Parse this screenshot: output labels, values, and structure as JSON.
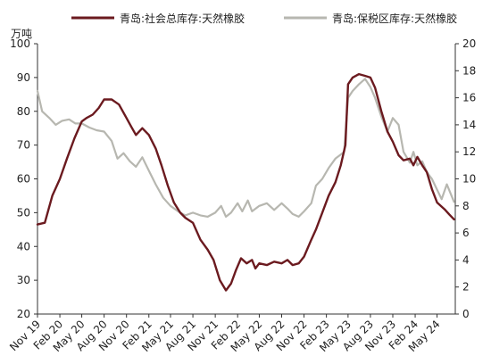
{
  "chart_data": {
    "type": "line",
    "title": "",
    "y_unit_label": "万吨",
    "y_left": {
      "min": 20,
      "max": 100,
      "ticks": [
        20,
        30,
        40,
        50,
        60,
        70,
        80,
        90,
        100
      ]
    },
    "y_right": {
      "min": 0,
      "max": 20,
      "ticks": [
        0,
        2,
        4,
        6,
        8,
        10,
        12,
        14,
        16,
        18,
        20
      ]
    },
    "x_range": [
      "2019-11-01",
      "2024-07-15"
    ],
    "x_ticks": [
      {
        "date": "2019-11-01",
        "label": "Nov 19"
      },
      {
        "date": "2020-02-01",
        "label": "Feb 20"
      },
      {
        "date": "2020-05-01",
        "label": "May 20"
      },
      {
        "date": "2020-08-01",
        "label": "Aug 20"
      },
      {
        "date": "2020-11-01",
        "label": "Nov 20"
      },
      {
        "date": "2021-02-01",
        "label": "Feb 21"
      },
      {
        "date": "2021-05-01",
        "label": "May 21"
      },
      {
        "date": "2021-08-01",
        "label": "Aug 21"
      },
      {
        "date": "2021-11-01",
        "label": "Nov 21"
      },
      {
        "date": "2022-02-01",
        "label": "Feb 22"
      },
      {
        "date": "2022-05-01",
        "label": "May 22"
      },
      {
        "date": "2022-08-01",
        "label": "Aug 22"
      },
      {
        "date": "2022-11-01",
        "label": "Nov 22"
      },
      {
        "date": "2023-02-01",
        "label": "Feb 23"
      },
      {
        "date": "2023-05-01",
        "label": "May 23"
      },
      {
        "date": "2023-08-01",
        "label": "Aug 23"
      },
      {
        "date": "2023-11-01",
        "label": "Nov 23"
      },
      {
        "date": "2024-02-01",
        "label": "Feb 24"
      },
      {
        "date": "2024-05-01",
        "label": "May 24"
      }
    ],
    "legend_position": "top",
    "grid": false,
    "series": [
      {
        "name": "青岛:社会总库存:天然橡胶",
        "axis": "left",
        "color": "#6b1a1f",
        "points": [
          [
            "2019-11-01",
            46.5
          ],
          [
            "2019-12-01",
            47
          ],
          [
            "2020-01-01",
            55
          ],
          [
            "2020-02-01",
            60
          ],
          [
            "2020-03-01",
            66
          ],
          [
            "2020-04-01",
            72
          ],
          [
            "2020-05-01",
            77
          ],
          [
            "2020-05-20",
            78
          ],
          [
            "2020-06-15",
            79
          ],
          [
            "2020-07-10",
            81
          ],
          [
            "2020-08-01",
            83.5
          ],
          [
            "2020-09-01",
            83.5
          ],
          [
            "2020-10-01",
            82
          ],
          [
            "2020-11-01",
            78
          ],
          [
            "2020-11-20",
            75.5
          ],
          [
            "2020-12-10",
            73
          ],
          [
            "2021-01-05",
            75
          ],
          [
            "2021-02-01",
            73
          ],
          [
            "2021-03-01",
            69
          ],
          [
            "2021-03-25",
            64
          ],
          [
            "2021-04-20",
            58
          ],
          [
            "2021-05-15",
            53
          ],
          [
            "2021-06-10",
            50
          ],
          [
            "2021-07-01",
            48.5
          ],
          [
            "2021-08-01",
            47
          ],
          [
            "2021-09-01",
            42
          ],
          [
            "2021-10-01",
            39
          ],
          [
            "2021-10-25",
            36
          ],
          [
            "2021-11-20",
            30
          ],
          [
            "2021-12-15",
            27
          ],
          [
            "2022-01-05",
            29
          ],
          [
            "2022-01-25",
            33
          ],
          [
            "2022-02-15",
            36.5
          ],
          [
            "2022-03-10",
            35
          ],
          [
            "2022-04-01",
            36
          ],
          [
            "2022-04-15",
            33.5
          ],
          [
            "2022-05-01",
            35
          ],
          [
            "2022-06-01",
            34.5
          ],
          [
            "2022-07-01",
            35.5
          ],
          [
            "2022-08-01",
            35
          ],
          [
            "2022-08-25",
            36
          ],
          [
            "2022-09-15",
            34.5
          ],
          [
            "2022-10-10",
            35
          ],
          [
            "2022-11-01",
            37
          ],
          [
            "2022-12-01",
            42
          ],
          [
            "2022-12-20",
            45
          ],
          [
            "2023-01-15",
            50
          ],
          [
            "2023-02-10",
            55
          ],
          [
            "2023-03-10",
            59
          ],
          [
            "2023-04-01",
            64
          ],
          [
            "2023-04-20",
            70
          ],
          [
            "2023-05-01",
            88
          ],
          [
            "2023-05-20",
            90
          ],
          [
            "2023-06-15",
            91
          ],
          [
            "2023-07-10",
            90.5
          ],
          [
            "2023-08-01",
            90
          ],
          [
            "2023-08-20",
            87
          ],
          [
            "2023-09-15",
            80
          ],
          [
            "2023-10-10",
            74
          ],
          [
            "2023-11-01",
            71
          ],
          [
            "2023-11-25",
            67
          ],
          [
            "2023-12-15",
            65.5
          ],
          [
            "2024-01-10",
            66
          ],
          [
            "2024-01-25",
            64
          ],
          [
            "2024-02-10",
            66.5
          ],
          [
            "2024-03-01",
            64
          ],
          [
            "2024-03-20",
            62
          ],
          [
            "2024-04-10",
            57
          ],
          [
            "2024-05-01",
            53
          ],
          [
            "2024-06-01",
            51
          ],
          [
            "2024-06-20",
            49.5
          ],
          [
            "2024-07-10",
            48
          ]
        ]
      },
      {
        "name": "青岛:保税区库存:天然橡胶",
        "axis": "right",
        "color": "#b7b7b0",
        "points": [
          [
            "2019-11-01",
            16.5
          ],
          [
            "2019-11-20",
            15
          ],
          [
            "2019-12-20",
            14.5
          ],
          [
            "2020-01-15",
            14
          ],
          [
            "2020-02-10",
            14.3
          ],
          [
            "2020-03-10",
            14.4
          ],
          [
            "2020-04-05",
            14.1
          ],
          [
            "2020-05-01",
            14.1
          ],
          [
            "2020-06-01",
            13.8
          ],
          [
            "2020-07-01",
            13.6
          ],
          [
            "2020-08-01",
            13.5
          ],
          [
            "2020-09-01",
            12.8
          ],
          [
            "2020-09-25",
            11.5
          ],
          [
            "2020-10-20",
            11.9
          ],
          [
            "2020-11-15",
            11.3
          ],
          [
            "2020-12-10",
            10.9
          ],
          [
            "2021-01-05",
            11.6
          ],
          [
            "2021-02-01",
            10.6
          ],
          [
            "2021-03-01",
            9.6
          ],
          [
            "2021-04-01",
            8.6
          ],
          [
            "2021-05-01",
            8
          ],
          [
            "2021-06-01",
            7.6
          ],
          [
            "2021-07-01",
            7.3
          ],
          [
            "2021-08-01",
            7.5
          ],
          [
            "2021-09-01",
            7.3
          ],
          [
            "2021-10-01",
            7.2
          ],
          [
            "2021-11-01",
            7.5
          ],
          [
            "2021-11-25",
            8
          ],
          [
            "2021-12-15",
            7.2
          ],
          [
            "2022-01-05",
            7.5
          ],
          [
            "2022-02-01",
            8.2
          ],
          [
            "2022-02-20",
            7.6
          ],
          [
            "2022-03-15",
            8.4
          ],
          [
            "2022-04-01",
            7.6
          ],
          [
            "2022-05-01",
            8
          ],
          [
            "2022-06-01",
            8.2
          ],
          [
            "2022-07-01",
            7.7
          ],
          [
            "2022-08-01",
            8.2
          ],
          [
            "2022-08-25",
            7.8
          ],
          [
            "2022-09-15",
            7.4
          ],
          [
            "2022-10-10",
            7.2
          ],
          [
            "2022-11-01",
            7.6
          ],
          [
            "2022-12-01",
            8.2
          ],
          [
            "2022-12-20",
            9.5
          ],
          [
            "2023-01-15",
            10
          ],
          [
            "2023-02-10",
            10.8
          ],
          [
            "2023-03-10",
            11.5
          ],
          [
            "2023-04-01",
            11.8
          ],
          [
            "2023-04-15",
            12
          ],
          [
            "2023-05-01",
            16
          ],
          [
            "2023-05-20",
            16.5
          ],
          [
            "2023-06-15",
            17
          ],
          [
            "2023-07-10",
            17.4
          ],
          [
            "2023-08-01",
            16.8
          ],
          [
            "2023-08-20",
            16
          ],
          [
            "2023-09-15",
            14.6
          ],
          [
            "2023-10-10",
            13.5
          ],
          [
            "2023-11-01",
            14.5
          ],
          [
            "2023-11-25",
            14
          ],
          [
            "2023-12-15",
            12
          ],
          [
            "2024-01-10",
            11.2
          ],
          [
            "2024-01-25",
            12
          ],
          [
            "2024-02-10",
            11
          ],
          [
            "2024-03-01",
            11.3
          ],
          [
            "2024-03-20",
            10.5
          ],
          [
            "2024-04-10",
            10
          ],
          [
            "2024-05-01",
            9.2
          ],
          [
            "2024-05-20",
            8.5
          ],
          [
            "2024-06-10",
            9.6
          ],
          [
            "2024-07-10",
            8.3
          ]
        ]
      }
    ]
  }
}
